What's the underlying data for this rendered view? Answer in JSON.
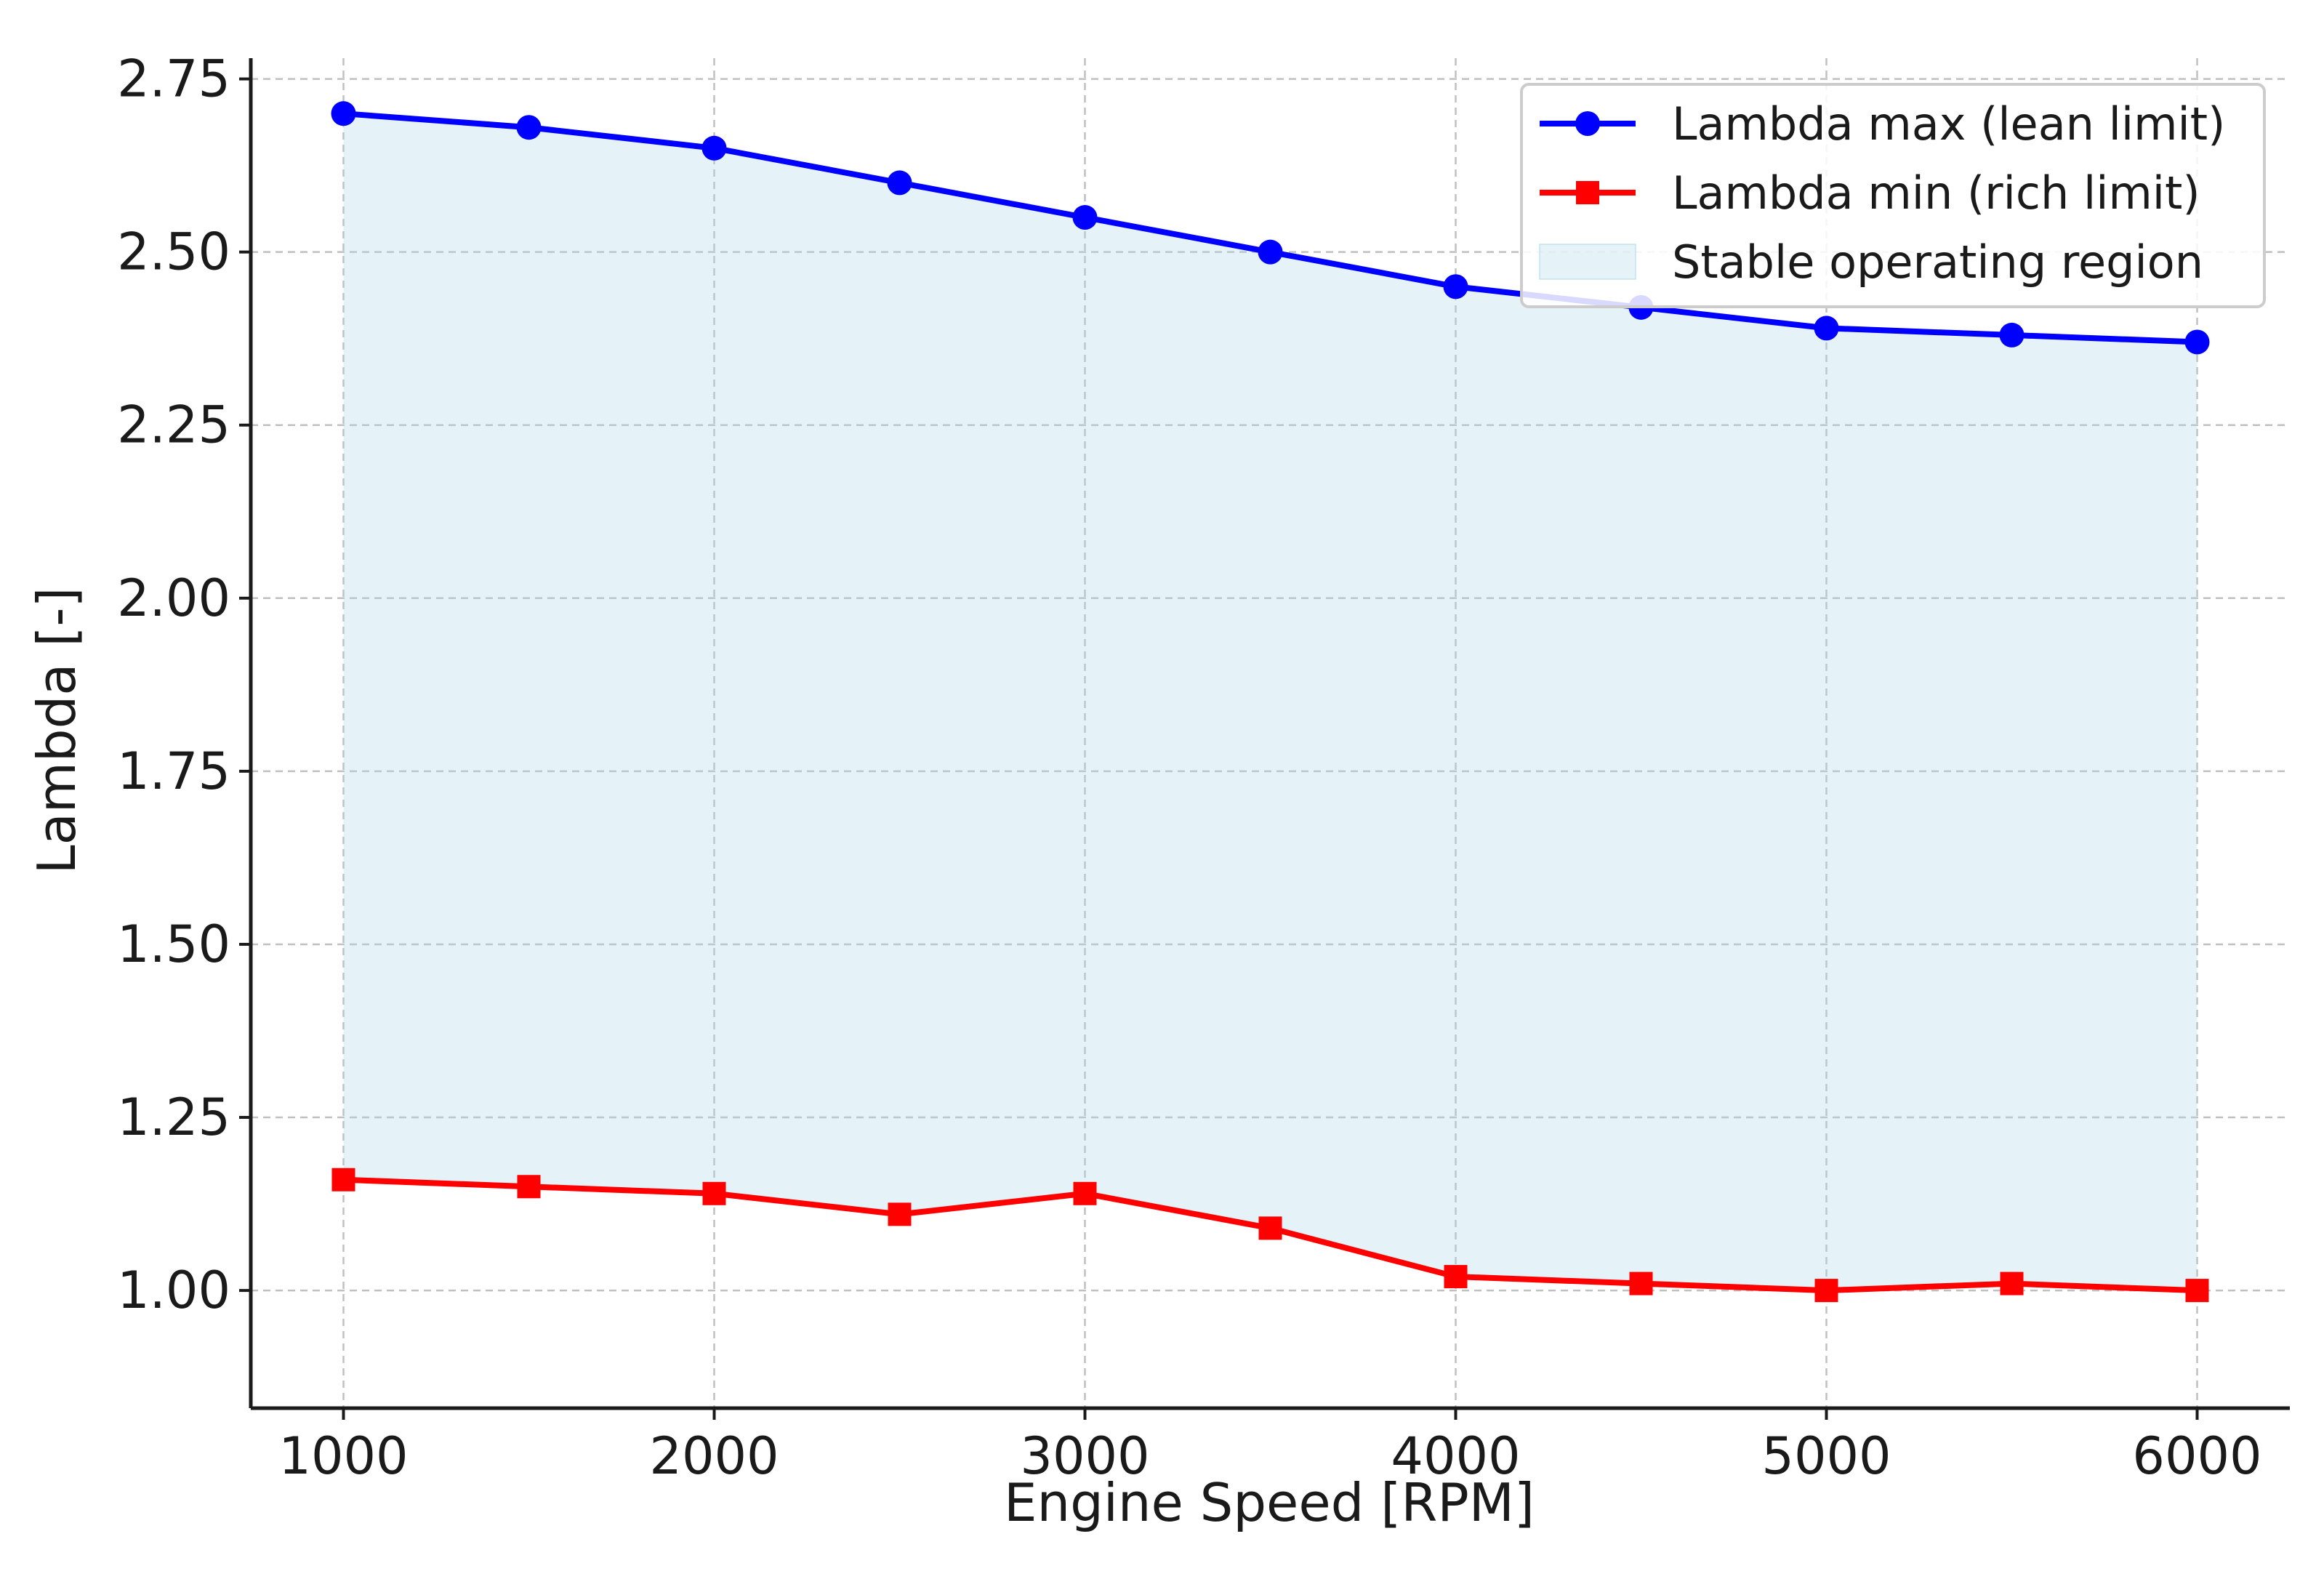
{
  "chart_data": {
    "type": "line",
    "title": "",
    "xlabel": "Engine Speed [RPM]",
    "ylabel": "Lambda [-]",
    "x": [
      1000,
      1500,
      2000,
      2500,
      3000,
      3500,
      4000,
      4500,
      5000,
      5500,
      6000
    ],
    "xlim": [
      750,
      6250
    ],
    "ylim": [
      0.83,
      2.78
    ],
    "x_ticks": [
      1000,
      2000,
      3000,
      4000,
      5000,
      6000
    ],
    "x_tick_labels": [
      "1000",
      "2000",
      "3000",
      "4000",
      "5000",
      "6000"
    ],
    "y_ticks": [
      1.0,
      1.25,
      1.5,
      1.75,
      2.0,
      2.25,
      2.5,
      2.75
    ],
    "y_tick_labels": [
      "1.00",
      "1.25",
      "1.50",
      "1.75",
      "2.00",
      "2.25",
      "2.50",
      "2.75"
    ],
    "grid": true,
    "grid_style": "dashed",
    "legend_position": "top-right",
    "series": [
      {
        "name": "Lambda max (lean limit)",
        "values": [
          2.7,
          2.68,
          2.65,
          2.6,
          2.55,
          2.5,
          2.45,
          2.42,
          2.39,
          2.38,
          2.37
        ],
        "color": "#0000ff",
        "marker": "circle"
      },
      {
        "name": "Lambda min (rich limit)",
        "values": [
          1.16,
          1.15,
          1.14,
          1.11,
          1.14,
          1.09,
          1.02,
          1.01,
          1.0,
          1.01,
          1.0
        ],
        "color": "#ff0000",
        "marker": "square"
      }
    ],
    "fill_region": {
      "name": "Stable operating region",
      "between": [
        "Lambda max (lean limit)",
        "Lambda min (rich limit)"
      ],
      "color": "#add8e6"
    }
  }
}
